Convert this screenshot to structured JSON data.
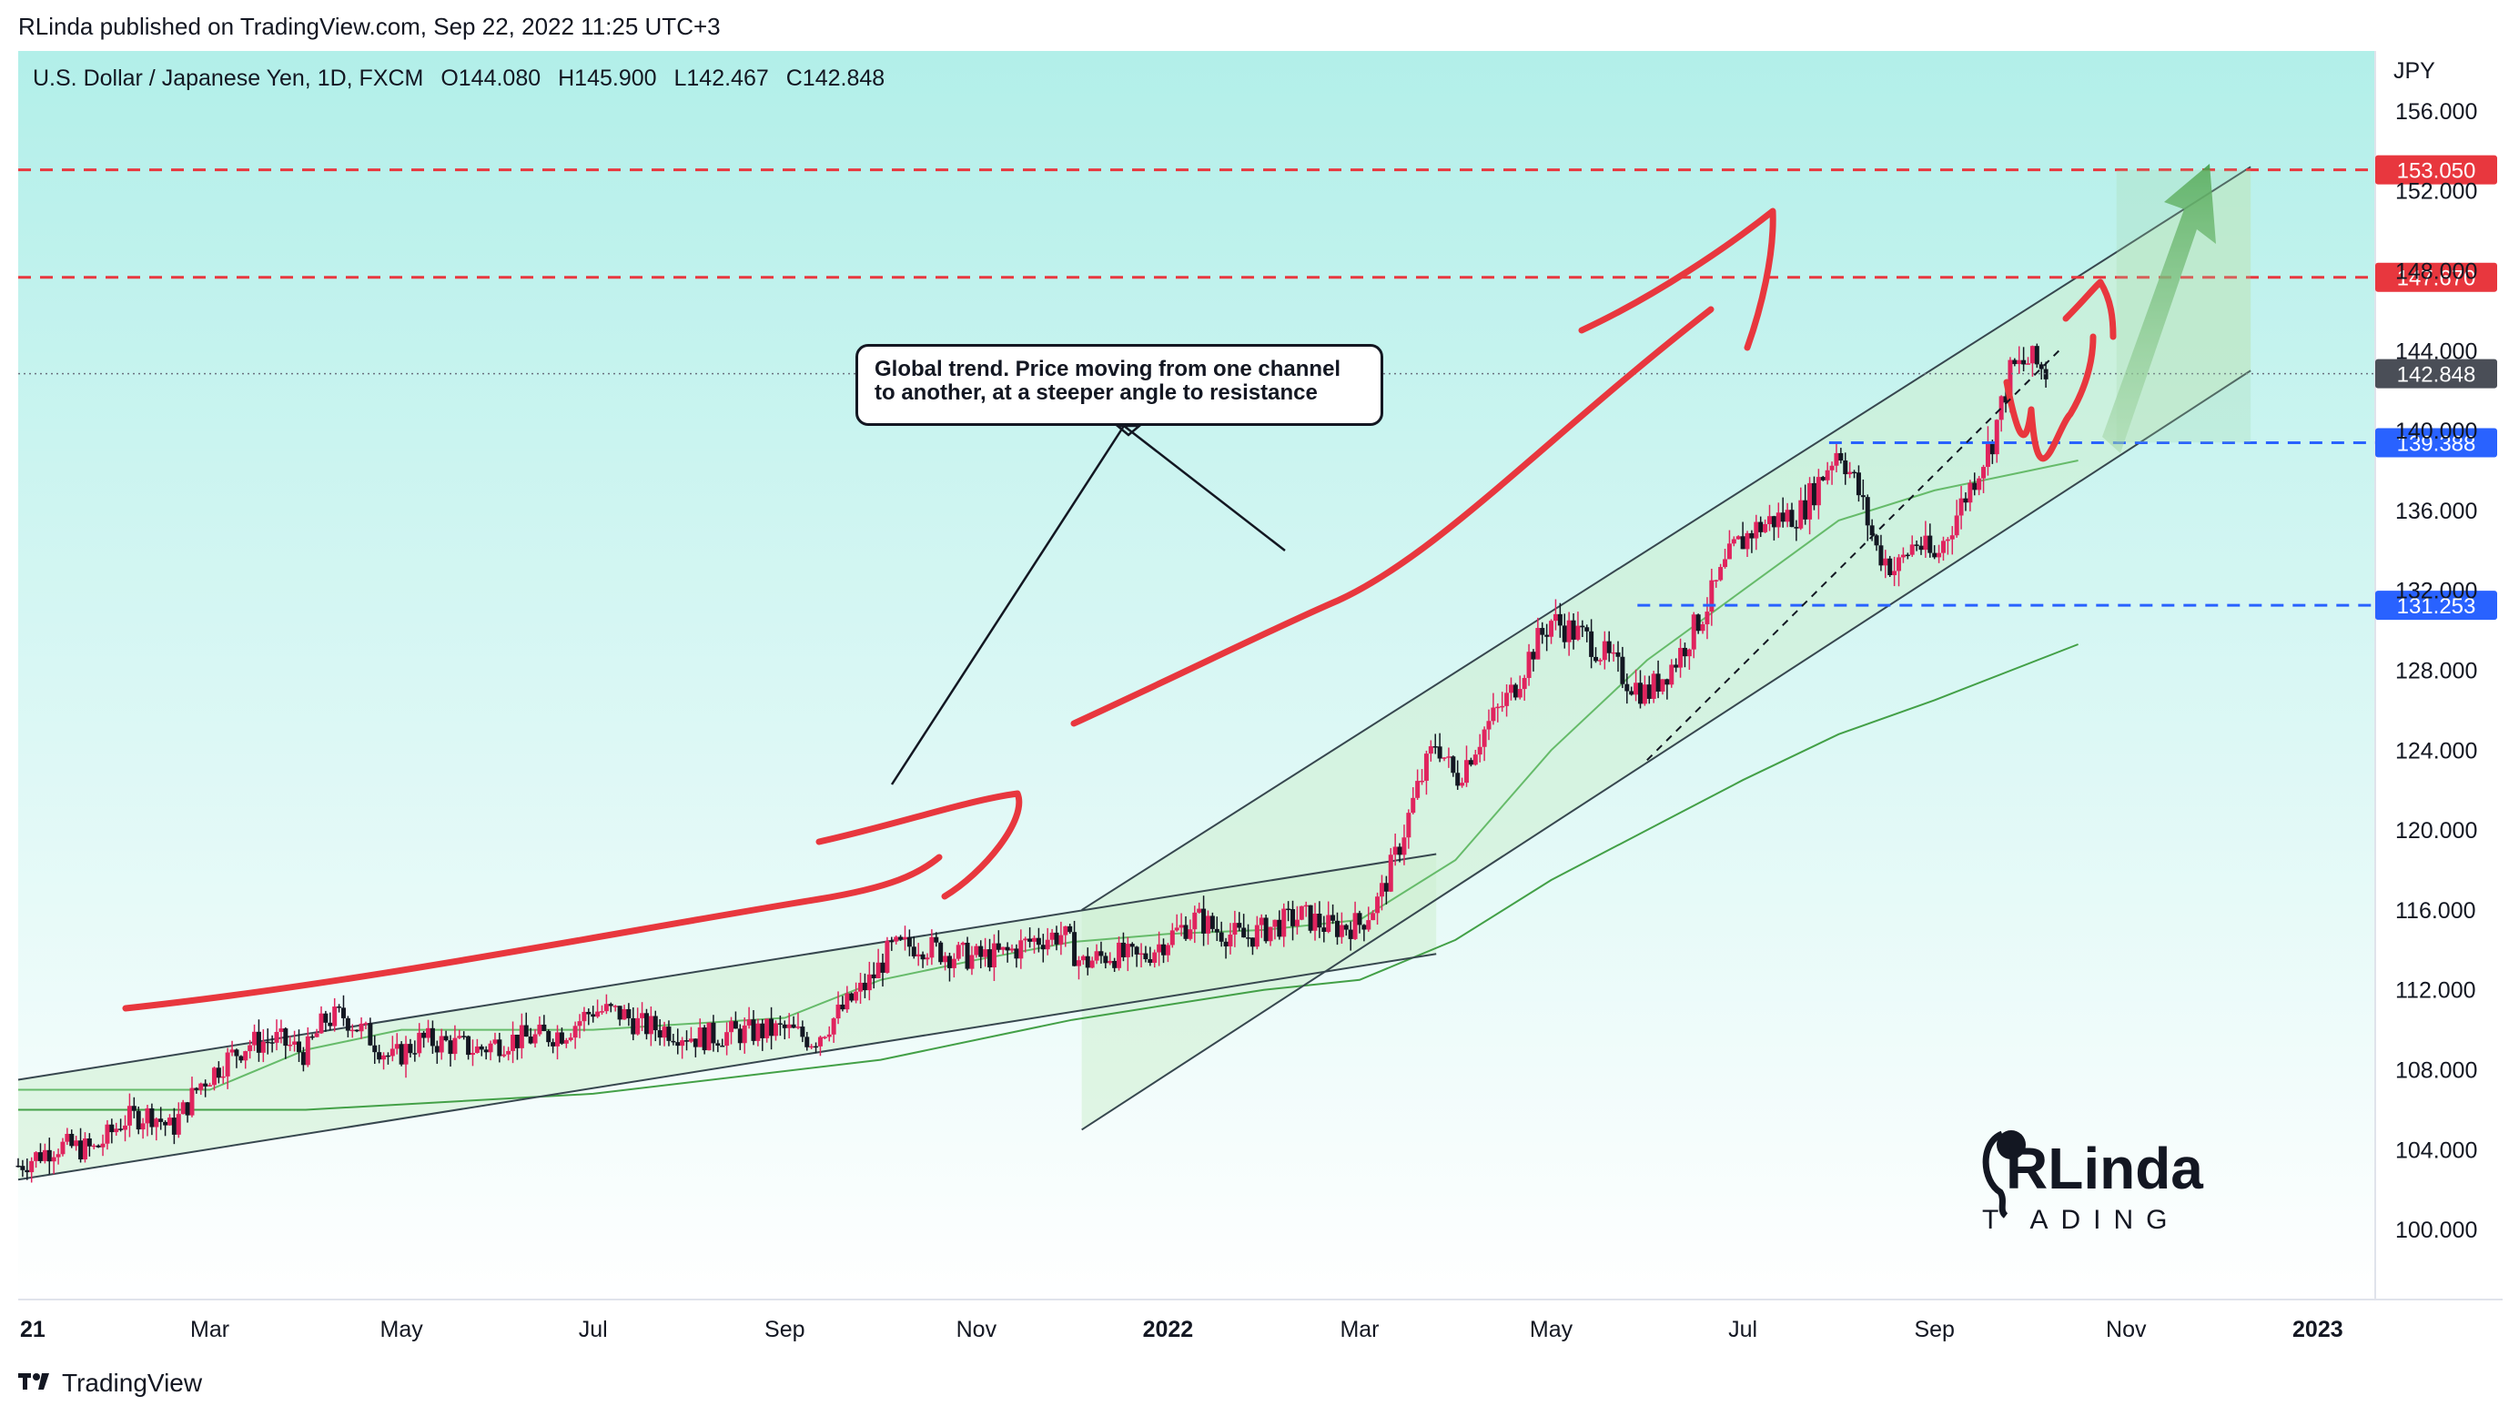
{
  "header": {
    "published": "RLinda published on TradingView.com, Sep 22, 2022 11:25 UTC+3"
  },
  "symbol": {
    "name": "U.S. Dollar / Japanese Yen, 1D, FXCM",
    "open": "O144.080",
    "high": "H145.900",
    "low": "L142.467",
    "close": "C142.848"
  },
  "currency": "JPY",
  "annotation": {
    "line1": "Global trend. Price moving from one channel",
    "line2": "to another, at a steeper angle to resistance"
  },
  "logo": {
    "text_top": "RLinda",
    "text_bottom": "T  ADING"
  },
  "footer": {
    "brand": "TradingView"
  },
  "colors": {
    "background_top": "#b2efe9",
    "background_bottom": "#ffffff",
    "bull": "#e0245e",
    "bear": "#131722",
    "level_red": "#e8373e",
    "level_blue": "#2962ff",
    "price_tag": "#4a4e57",
    "channel_fill": "#cdeecf",
    "ma_green": "#4caf50",
    "arrow_green": "#43a047"
  },
  "chart_data": {
    "type": "candlestick",
    "title": "U.S. Dollar / Japanese Yen, 1D, FXCM",
    "ylabel": "JPY",
    "ylim": [
      96.5,
      159
    ],
    "y_ticks": [
      "156.000",
      "152.000",
      "148.000",
      "144.000",
      "140.000",
      "136.000",
      "132.000",
      "128.000",
      "124.000",
      "120.000",
      "116.000",
      "112.000",
      "108.000",
      "104.000",
      "100.000"
    ],
    "y_tick_values": [
      156,
      152,
      148,
      144,
      140,
      136,
      132,
      128,
      124,
      120,
      116,
      112,
      108,
      104,
      100
    ],
    "x_ticks": [
      "21",
      "Mar",
      "May",
      "Jul",
      "Sep",
      "Nov",
      "2022",
      "Mar",
      "May",
      "Jul",
      "Sep",
      "Nov",
      "2023"
    ],
    "x_tick_months": [
      0,
      2,
      4,
      6,
      8,
      10,
      12,
      14,
      16,
      18,
      20,
      22,
      24
    ],
    "x_range_months": [
      0,
      24.6
    ],
    "levels": [
      {
        "price": 153.05,
        "label": "153.050",
        "color": "red"
      },
      {
        "price": 147.67,
        "label": "147.670",
        "color": "red"
      },
      {
        "price": 142.848,
        "label": "142.848",
        "color": "gray",
        "style": "dotted"
      },
      {
        "price": 139.388,
        "label": "139.388",
        "color": "blue"
      },
      {
        "price": 131.253,
        "label": "131.253",
        "color": "blue"
      }
    ],
    "price_path": [
      [
        0,
        103.2
      ],
      [
        0.4,
        104.2
      ],
      [
        0.8,
        104.0
      ],
      [
        1.1,
        105.5
      ],
      [
        1.4,
        105.8
      ],
      [
        1.6,
        105.0
      ],
      [
        1.9,
        107.3
      ],
      [
        2.2,
        108.6
      ],
      [
        2.4,
        109.3
      ],
      [
        2.7,
        109.5
      ],
      [
        3.0,
        108.8
      ],
      [
        3.2,
        110.5
      ],
      [
        3.4,
        110.7
      ],
      [
        3.7,
        109.5
      ],
      [
        3.9,
        108.5
      ],
      [
        4.2,
        109.5
      ],
      [
        4.5,
        109.3
      ],
      [
        4.8,
        109.0
      ],
      [
        5.1,
        109.5
      ],
      [
        5.4,
        109.6
      ],
      [
        5.7,
        109.9
      ],
      [
        6.0,
        111.0
      ],
      [
        6.3,
        110.8
      ],
      [
        6.5,
        110.2
      ],
      [
        6.8,
        110.0
      ],
      [
        7.1,
        109.6
      ],
      [
        7.4,
        109.8
      ],
      [
        7.7,
        109.9
      ],
      [
        8.0,
        110.0
      ],
      [
        8.3,
        109.5
      ],
      [
        8.6,
        111.0
      ],
      [
        8.9,
        112.5
      ],
      [
        9.1,
        114.0
      ],
      [
        9.4,
        114.3
      ],
      [
        9.7,
        113.8
      ],
      [
        10.0,
        113.6
      ],
      [
        10.3,
        113.8
      ],
      [
        10.6,
        114.5
      ],
      [
        10.9,
        114.8
      ],
      [
        11.1,
        113.3
      ],
      [
        11.4,
        113.8
      ],
      [
        11.7,
        113.5
      ],
      [
        12.0,
        114.6
      ],
      [
        12.3,
        115.6
      ],
      [
        12.5,
        115.0
      ],
      [
        12.8,
        114.6
      ],
      [
        13.1,
        115.2
      ],
      [
        13.4,
        115.7
      ],
      [
        13.7,
        115.1
      ],
      [
        14.0,
        115.3
      ],
      [
        14.2,
        116.5
      ],
      [
        14.4,
        119.0
      ],
      [
        14.6,
        122.0
      ],
      [
        14.8,
        124.5
      ],
      [
        15.0,
        122.5
      ],
      [
        15.3,
        125.0
      ],
      [
        15.6,
        127.0
      ],
      [
        15.8,
        129.0
      ],
      [
        16.0,
        130.5
      ],
      [
        16.2,
        130.0
      ],
      [
        16.4,
        129.5
      ],
      [
        16.6,
        128.5
      ],
      [
        16.8,
        127.5
      ],
      [
        17.0,
        126.8
      ],
      [
        17.3,
        128.5
      ],
      [
        17.6,
        131.0
      ],
      [
        17.9,
        134.0
      ],
      [
        18.1,
        135.0
      ],
      [
        18.3,
        135.5
      ],
      [
        18.6,
        135.9
      ],
      [
        18.8,
        137.5
      ],
      [
        19.0,
        139.2
      ],
      [
        19.2,
        137.0
      ],
      [
        19.4,
        134.0
      ],
      [
        19.6,
        133.0
      ],
      [
        19.8,
        134.5
      ],
      [
        20.0,
        133.5
      ],
      [
        20.2,
        135.5
      ],
      [
        20.4,
        137.5
      ],
      [
        20.6,
        139.5
      ],
      [
        20.8,
        143.0
      ],
      [
        21.0,
        143.5
      ],
      [
        21.2,
        142.8
      ]
    ],
    "ma_fast": [
      [
        0,
        107.0
      ],
      [
        2,
        107.0
      ],
      [
        3,
        109.0
      ],
      [
        4,
        110.0
      ],
      [
        6,
        110.0
      ],
      [
        8,
        110.6
      ],
      [
        9,
        112.5
      ],
      [
        10,
        113.5
      ],
      [
        11,
        114.4
      ],
      [
        12,
        114.8
      ],
      [
        13,
        115.0
      ],
      [
        14,
        115.5
      ],
      [
        15,
        118.5
      ],
      [
        16,
        124.0
      ],
      [
        17,
        128.5
      ],
      [
        18,
        132.0
      ],
      [
        19,
        135.5
      ],
      [
        20,
        137.0
      ],
      [
        21,
        138.0
      ],
      [
        21.5,
        138.5
      ]
    ],
    "ma_slow": [
      [
        0,
        106.0
      ],
      [
        3,
        106.0
      ],
      [
        6,
        106.8
      ],
      [
        9,
        108.5
      ],
      [
        11,
        110.5
      ],
      [
        13,
        112.0
      ],
      [
        14,
        112.5
      ],
      [
        15,
        114.5
      ],
      [
        16,
        117.5
      ],
      [
        17,
        120.0
      ],
      [
        18,
        122.5
      ],
      [
        19,
        124.8
      ],
      [
        20,
        126.5
      ],
      [
        21.5,
        129.3
      ]
    ],
    "channel_1": {
      "upper": [
        [
          0,
          107.5
        ],
        [
          14.8,
          118.8
        ]
      ],
      "lower": [
        [
          0,
          102.5
        ],
        [
          14.8,
          113.8
        ]
      ]
    },
    "channel_2": {
      "upper": [
        [
          11.1,
          116.0
        ],
        [
          23.3,
          153.2
        ]
      ],
      "lower": [
        [
          11.1,
          105.0
        ],
        [
          23.3,
          143.0
        ]
      ]
    }
  }
}
